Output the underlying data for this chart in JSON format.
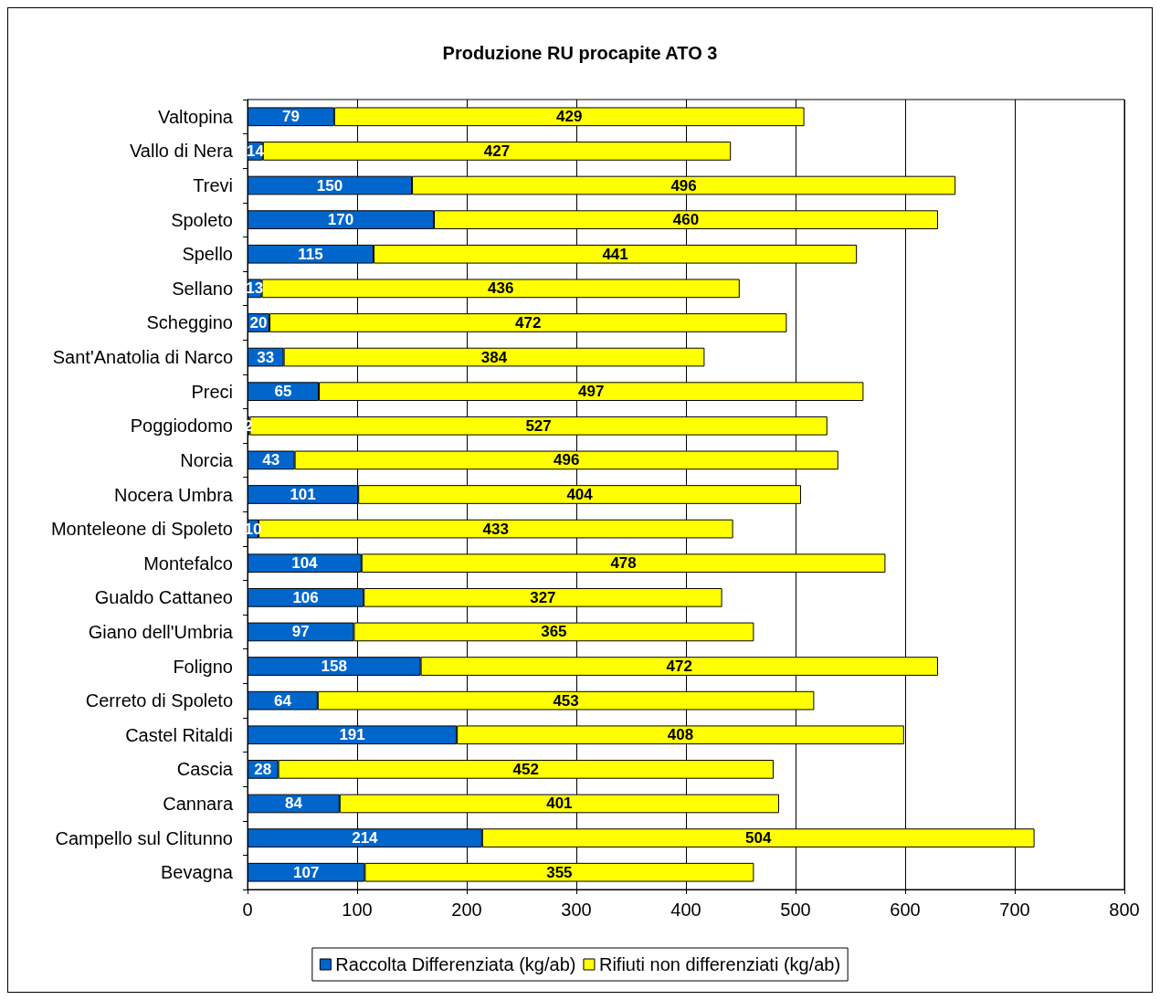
{
  "chart_data": {
    "type": "bar",
    "title": "Produzione RU procapite ATO 3",
    "orientation": "horizontal",
    "stacked": true,
    "data_labels": true,
    "grid": "x",
    "legend": "bottom",
    "categories": [
      "Valtopina",
      "Vallo di Nera",
      "Trevi",
      "Spoleto",
      "Spello",
      "Sellano",
      "Scheggino",
      "Sant'Anatolia di Narco",
      "Preci",
      "Poggiodomo",
      "Norcia",
      "Nocera Umbra",
      "Monteleone di Spoleto",
      "Montefalco",
      "Gualdo Cattaneo",
      "Giano dell'Umbria",
      "Foligno",
      "Cerreto di Spoleto",
      "Castel Ritaldi",
      "Cascia",
      "Cannara",
      "Campello sul Clitunno",
      "Bevagna"
    ],
    "series": [
      {
        "name": "Raccolta Differenziata (kg/ab)",
        "color": "#0066cc",
        "values": [
          79,
          14,
          150,
          170,
          115,
          13,
          20,
          33,
          65,
          2,
          43,
          101,
          10,
          104,
          106,
          97,
          158,
          64,
          191,
          28,
          84,
          214,
          107
        ]
      },
      {
        "name": "Rifiuti non differenziati (kg/ab)",
        "color": "#ffff00",
        "values": [
          429,
          427,
          496,
          460,
          441,
          436,
          472,
          384,
          497,
          527,
          496,
          404,
          433,
          478,
          327,
          365,
          472,
          453,
          408,
          452,
          401,
          504,
          355
        ]
      }
    ],
    "xlim": [
      0,
      800
    ],
    "xticks": [
      0,
      100,
      200,
      300,
      400,
      500,
      600,
      700,
      800
    ]
  }
}
